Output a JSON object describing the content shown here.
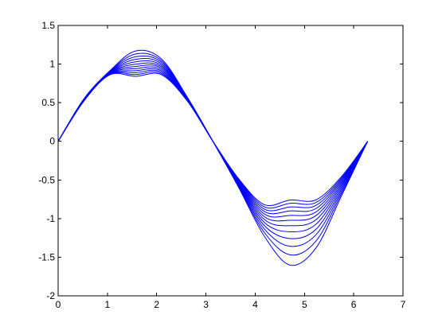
{
  "chart_data": {
    "type": "line",
    "title": "",
    "xlabel": "",
    "ylabel": "",
    "xlim": [
      0,
      7
    ],
    "ylim": [
      -2,
      1.5
    ],
    "xticks": [
      0,
      1,
      2,
      3,
      4,
      5,
      6,
      7
    ],
    "yticks": [
      -2,
      -1.5,
      -1,
      -0.5,
      0,
      0.5,
      1,
      1.5
    ],
    "xtick_labels": [
      "0",
      "1",
      "2",
      "3",
      "4",
      "5",
      "6",
      "7"
    ],
    "ytick_labels": [
      "-2",
      "-1.5",
      "-1",
      "-0.5",
      "0",
      "0.5",
      "1",
      "1.5"
    ],
    "grid": false,
    "legend": "none",
    "line_color": "#0000ff",
    "axis_color": "#000000",
    "background": "#ffffff",
    "x_range": [
      0,
      6.2832
    ],
    "series": [
      {
        "x": [
          0,
          0.5236,
          1.0472,
          1.5708,
          2.0944,
          2.618,
          3.1416,
          3.6652,
          4.1888,
          4.7124,
          5.236,
          5.7596,
          6.2832
        ],
        "y": [
          0,
          0.551,
          0.912,
          1.169,
          1.068,
          0.576,
          0,
          -0.599,
          -1.232,
          -1.603,
          -1.378,
          -0.695,
          0
        ]
      },
      {
        "x": [
          0,
          0.5236,
          1.0472,
          1.5708,
          2.0944,
          2.618,
          3.1416,
          3.6652,
          4.1888,
          4.7124,
          5.236,
          5.7596,
          6.2832
        ],
        "y": [
          0,
          0.548,
          0.907,
          1.131,
          1.046,
          0.571,
          0,
          -0.587,
          -1.183,
          -1.47,
          -1.289,
          -0.666,
          0
        ]
      },
      {
        "x": [
          0,
          0.5236,
          1.0472,
          1.5708,
          2.0944,
          2.618,
          3.1416,
          3.6652,
          4.1888,
          4.7124,
          5.236,
          5.7596,
          6.2832
        ],
        "y": [
          0,
          0.545,
          0.902,
          1.095,
          1.025,
          0.566,
          0,
          -0.576,
          -1.137,
          -1.359,
          -1.208,
          -0.639,
          0
        ]
      },
      {
        "x": [
          0,
          0.5236,
          1.0472,
          1.5708,
          2.0944,
          2.618,
          3.1416,
          3.6652,
          4.1888,
          4.7124,
          5.236,
          5.7596,
          6.2832
        ],
        "y": [
          0,
          0.543,
          0.897,
          1.061,
          1.005,
          0.561,
          0,
          -0.564,
          -1.093,
          -1.259,
          -1.137,
          -0.613,
          0
        ]
      },
      {
        "x": [
          0,
          0.5236,
          1.0472,
          1.5708,
          2.0944,
          2.618,
          3.1416,
          3.6652,
          4.1888,
          4.7124,
          5.236,
          5.7596,
          6.2832
        ],
        "y": [
          0,
          0.54,
          0.892,
          1.029,
          0.985,
          0.557,
          0,
          -0.553,
          -1.052,
          -1.171,
          -1.072,
          -0.588,
          0
        ]
      },
      {
        "x": [
          0,
          0.5236,
          1.0472,
          1.5708,
          2.0944,
          2.618,
          3.1416,
          3.6652,
          4.1888,
          4.7124,
          5.236,
          5.7596,
          6.2832
        ],
        "y": [
          0,
          0.537,
          0.887,
          0.998,
          0.966,
          0.552,
          0,
          -0.543,
          -1.013,
          -1.092,
          -1.014,
          -0.565,
          0
        ]
      },
      {
        "x": [
          0,
          0.5236,
          1.0472,
          1.5708,
          2.0944,
          2.618,
          3.1416,
          3.6652,
          4.1888,
          4.7124,
          5.236,
          5.7596,
          6.2832
        ],
        "y": [
          0,
          0.535,
          0.882,
          0.969,
          0.948,
          0.547,
          0,
          -0.532,
          -0.977,
          -1.022,
          -0.961,
          -0.544,
          0
        ]
      },
      {
        "x": [
          0,
          0.5236,
          1.0472,
          1.5708,
          2.0944,
          2.618,
          3.1416,
          3.6652,
          4.1888,
          4.7124,
          5.236,
          5.7596,
          6.2832
        ],
        "y": [
          0,
          0.532,
          0.877,
          0.941,
          0.93,
          0.543,
          0,
          -0.522,
          -0.942,
          -0.959,
          -0.913,
          -0.523,
          0
        ]
      },
      {
        "x": [
          0,
          0.5236,
          1.0472,
          1.5708,
          2.0944,
          2.618,
          3.1416,
          3.6652,
          4.1888,
          4.7124,
          5.236,
          5.7596,
          6.2832
        ],
        "y": [
          0,
          0.529,
          0.873,
          0.914,
          0.912,
          0.538,
          0,
          -0.512,
          -0.909,
          -0.901,
          -0.869,
          -0.503,
          0
        ]
      },
      {
        "x": [
          0,
          0.5236,
          1.0472,
          1.5708,
          2.0944,
          2.618,
          3.1416,
          3.6652,
          4.1888,
          4.7124,
          5.236,
          5.7596,
          6.2832
        ],
        "y": [
          0,
          0.527,
          0.868,
          0.889,
          0.895,
          0.534,
          0,
          -0.503,
          -0.878,
          -0.849,
          -0.828,
          -0.485,
          0
        ]
      },
      {
        "x": [
          0,
          0.5236,
          1.0472,
          1.5708,
          2.0944,
          2.618,
          3.1416,
          3.6652,
          4.1888,
          4.7124,
          5.236,
          5.7596,
          6.2832
        ],
        "y": [
          0,
          0.524,
          0.864,
          0.864,
          0.879,
          0.53,
          0,
          -0.494,
          -0.849,
          -0.802,
          -0.791,
          -0.467,
          0
        ]
      },
      {
        "x": [
          0,
          0.5236,
          1.0472,
          1.5708,
          2.0944,
          2.618,
          3.1416,
          3.6652,
          4.1888,
          4.7124,
          5.236,
          5.7596,
          6.2832
        ],
        "y": [
          0,
          0.522,
          0.86,
          0.841,
          0.863,
          0.525,
          0,
          -0.485,
          -0.821,
          -0.759,
          -0.757,
          -0.451,
          0
        ]
      }
    ]
  }
}
